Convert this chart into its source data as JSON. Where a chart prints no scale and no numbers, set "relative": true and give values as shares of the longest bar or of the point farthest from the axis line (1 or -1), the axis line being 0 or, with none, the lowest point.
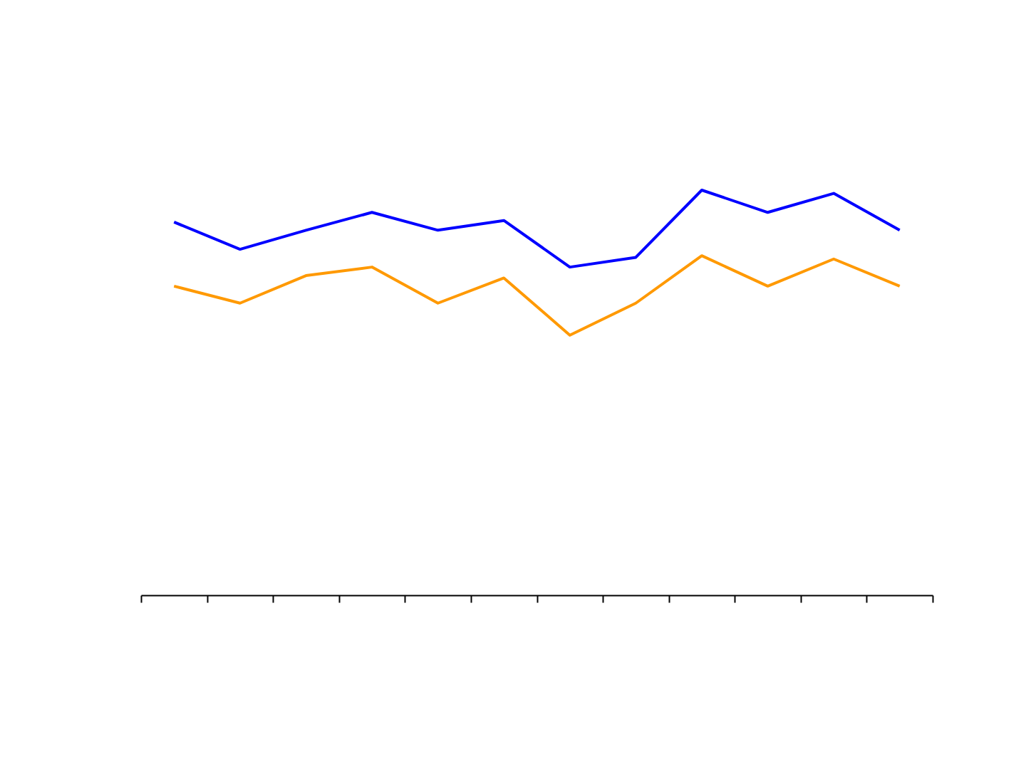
{
  "chart_data": {
    "type": "line",
    "relative": true,
    "categories": [
      null,
      null,
      null,
      null,
      null,
      null,
      null,
      null,
      null,
      null,
      null,
      null
    ],
    "series": [
      {
        "color": "#0000ff",
        "values": [
          0.921,
          0.854,
          0.901,
          0.945,
          0.901,
          0.925,
          0.81,
          0.834,
          1,
          0.945,
          0.992,
          0.901
        ]
      },
      {
        "color": "#ff9900",
        "values": [
          0.763,
          0.721,
          0.789,
          0.81,
          0.721,
          0.783,
          0.642,
          0.721,
          0.838,
          0.763,
          0.83,
          0.763
        ]
      }
    ]
  }
}
